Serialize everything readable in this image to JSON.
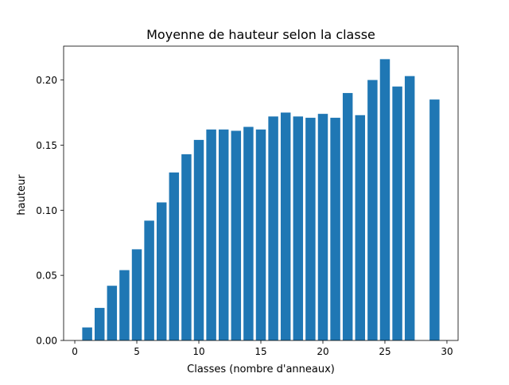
{
  "chart_data": {
    "type": "bar",
    "title": "Moyenne de hauteur selon la classe",
    "xlabel": "Classes (nombre d'anneaux)",
    "ylabel": "hauteur",
    "xlim": [
      -0.9,
      30.9
    ],
    "ylim": [
      0,
      0.226
    ],
    "grid": false,
    "bar_color": "#1f77b4",
    "x": [
      1,
      2,
      3,
      4,
      5,
      6,
      7,
      8,
      9,
      10,
      11,
      12,
      13,
      14,
      15,
      16,
      17,
      18,
      19,
      20,
      21,
      22,
      23,
      24,
      25,
      26,
      27,
      29
    ],
    "values": [
      0.01,
      0.025,
      0.042,
      0.054,
      0.07,
      0.092,
      0.106,
      0.129,
      0.143,
      0.154,
      0.162,
      0.162,
      0.161,
      0.164,
      0.162,
      0.172,
      0.175,
      0.172,
      0.171,
      0.174,
      0.171,
      0.19,
      0.173,
      0.2,
      0.216,
      0.195,
      0.203,
      0.185
    ],
    "xticks": [
      {
        "value": 0,
        "label": "0"
      },
      {
        "value": 5,
        "label": "5"
      },
      {
        "value": 10,
        "label": "10"
      },
      {
        "value": 15,
        "label": "15"
      },
      {
        "value": 20,
        "label": "20"
      },
      {
        "value": 25,
        "label": "25"
      },
      {
        "value": 30,
        "label": "30"
      }
    ],
    "yticks": [
      {
        "value": 0.0,
        "label": "0.00"
      },
      {
        "value": 0.05,
        "label": "0.05"
      },
      {
        "value": 0.1,
        "label": "0.10"
      },
      {
        "value": 0.15,
        "label": "0.15"
      },
      {
        "value": 0.2,
        "label": "0.20"
      }
    ]
  }
}
